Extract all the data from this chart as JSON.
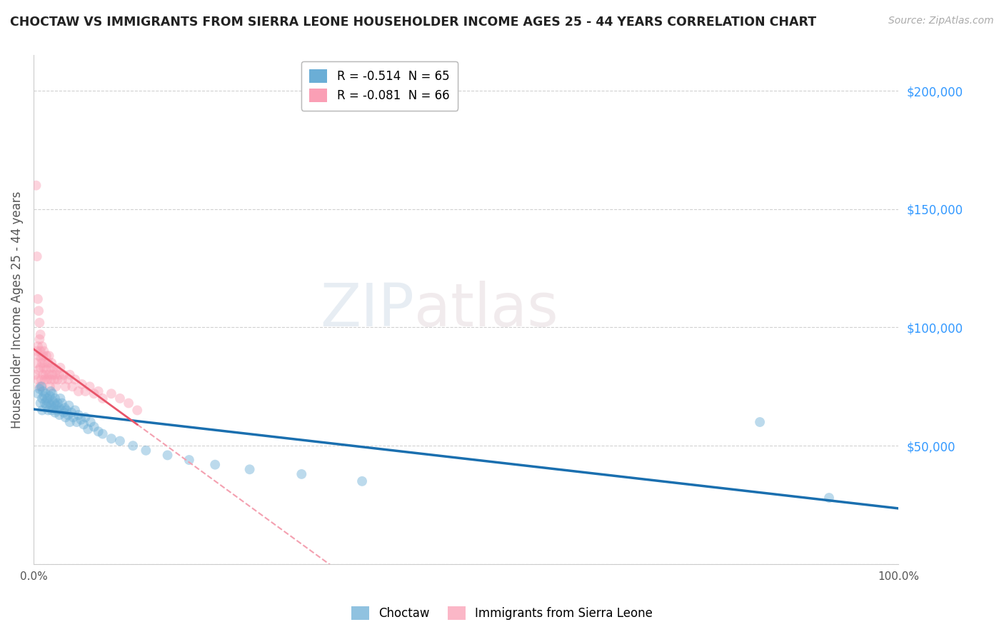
{
  "title": "CHOCTAW VS IMMIGRANTS FROM SIERRA LEONE HOUSEHOLDER INCOME AGES 25 - 44 YEARS CORRELATION CHART",
  "source": "Source: ZipAtlas.com",
  "ylabel": "Householder Income Ages 25 - 44 years",
  "legend_entries": [
    {
      "label": "R = -0.514  N = 65",
      "color": "#6baed6"
    },
    {
      "label": "R = -0.081  N = 66",
      "color": "#fa9fb5"
    }
  ],
  "legend_names": [
    "Choctaw",
    "Immigrants from Sierra Leone"
  ],
  "choctaw_x": [
    0.005,
    0.007,
    0.008,
    0.009,
    0.01,
    0.01,
    0.011,
    0.012,
    0.013,
    0.014,
    0.015,
    0.015,
    0.016,
    0.017,
    0.018,
    0.019,
    0.02,
    0.02,
    0.021,
    0.022,
    0.022,
    0.023,
    0.024,
    0.025,
    0.025,
    0.026,
    0.027,
    0.028,
    0.03,
    0.03,
    0.031,
    0.032,
    0.033,
    0.035,
    0.036,
    0.037,
    0.038,
    0.04,
    0.041,
    0.042,
    0.044,
    0.046,
    0.048,
    0.05,
    0.052,
    0.055,
    0.058,
    0.06,
    0.063,
    0.066,
    0.07,
    0.075,
    0.08,
    0.09,
    0.1,
    0.115,
    0.13,
    0.155,
    0.18,
    0.21,
    0.25,
    0.31,
    0.38,
    0.84,
    0.92
  ],
  "choctaw_y": [
    72000,
    74000,
    68000,
    75000,
    70000,
    65000,
    73000,
    71000,
    68000,
    72000,
    69000,
    67000,
    70000,
    65000,
    68000,
    71000,
    67000,
    73000,
    65000,
    69000,
    72000,
    66000,
    68000,
    64000,
    70000,
    67000,
    65000,
    68000,
    66000,
    63000,
    70000,
    65000,
    68000,
    64000,
    66000,
    62000,
    65000,
    63000,
    67000,
    60000,
    64000,
    62000,
    65000,
    60000,
    63000,
    61000,
    59000,
    62000,
    57000,
    60000,
    58000,
    56000,
    55000,
    53000,
    52000,
    50000,
    48000,
    46000,
    44000,
    42000,
    40000,
    38000,
    35000,
    60000,
    28000
  ],
  "sierra_leone_x": [
    0.002,
    0.003,
    0.004,
    0.005,
    0.005,
    0.006,
    0.006,
    0.007,
    0.007,
    0.008,
    0.008,
    0.009,
    0.009,
    0.01,
    0.01,
    0.01,
    0.011,
    0.011,
    0.012,
    0.012,
    0.013,
    0.013,
    0.014,
    0.015,
    0.015,
    0.016,
    0.017,
    0.018,
    0.018,
    0.019,
    0.02,
    0.02,
    0.021,
    0.022,
    0.023,
    0.024,
    0.025,
    0.026,
    0.027,
    0.028,
    0.03,
    0.031,
    0.033,
    0.035,
    0.037,
    0.04,
    0.042,
    0.045,
    0.048,
    0.052,
    0.056,
    0.06,
    0.065,
    0.07,
    0.075,
    0.08,
    0.09,
    0.1,
    0.11,
    0.12,
    0.003,
    0.004,
    0.005,
    0.006,
    0.007,
    0.008
  ],
  "sierra_leone_y": [
    80000,
    85000,
    90000,
    78000,
    92000,
    88000,
    82000,
    95000,
    75000,
    90000,
    83000,
    87000,
    78000,
    92000,
    85000,
    75000,
    88000,
    80000,
    83000,
    90000,
    78000,
    85000,
    80000,
    88000,
    82000,
    78000,
    85000,
    80000,
    88000,
    75000,
    83000,
    78000,
    85000,
    80000,
    83000,
    78000,
    80000,
    75000,
    82000,
    78000,
    80000,
    83000,
    78000,
    80000,
    75000,
    78000,
    80000,
    75000,
    78000,
    73000,
    76000,
    73000,
    75000,
    72000,
    73000,
    70000,
    72000,
    70000,
    68000,
    65000,
    160000,
    130000,
    112000,
    107000,
    102000,
    97000
  ],
  "choctaw_color": "#6baed6",
  "sierra_leone_color": "#fa9fb5",
  "choctaw_line_color": "#1a6faf",
  "sierra_leone_solid_color": "#e8556a",
  "sierra_leone_dash_color": "#f4a0b0",
  "bg_color": "#ffffff",
  "grid_color": "#cccccc",
  "title_color": "#222222",
  "ytick_color": "#3399ff",
  "marker_size": 100,
  "marker_alpha": 0.45,
  "xlim": [
    0.0,
    1.0
  ],
  "ylim": [
    0,
    215000
  ],
  "yticks": [
    0,
    50000,
    100000,
    150000,
    200000
  ],
  "ytick_labels": [
    "",
    "$50,000",
    "$100,000",
    "$150,000",
    "$200,000"
  ]
}
